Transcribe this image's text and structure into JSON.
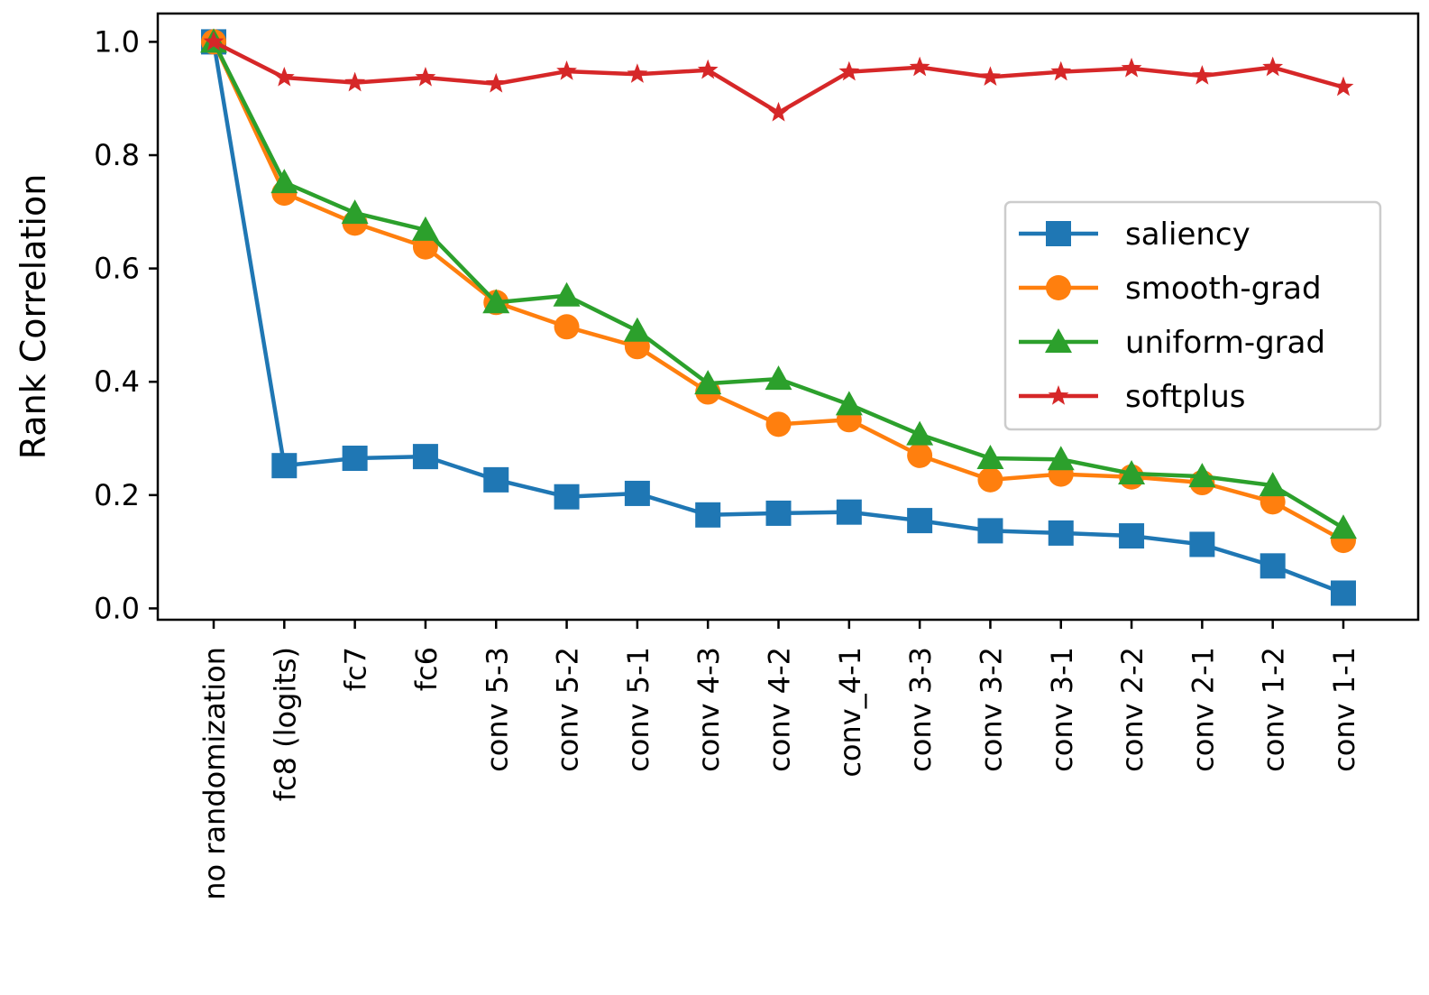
{
  "chart_data": {
    "type": "line",
    "title": "",
    "xlabel": "",
    "ylabel": "Rank Correlation",
    "ylim": [
      -0.02,
      1.05
    ],
    "yticks": [
      0.0,
      0.2,
      0.4,
      0.6,
      0.8,
      1.0
    ],
    "ytick_labels": [
      "0.0",
      "0.2",
      "0.4",
      "0.6",
      "0.8",
      "1.0"
    ],
    "grid": false,
    "legend_position": "center-right",
    "categories": [
      "no randomization",
      "fc8 (logits)",
      "fc7",
      "fc6",
      "conv 5-3",
      "conv 5-2",
      "conv 5-1",
      "conv 4-3",
      "conv 4-2",
      "conv_4-1",
      "conv 3-3",
      "conv 3-2",
      "conv 3-1",
      "conv 2-2",
      "conv 2-1",
      "conv 1-2",
      "conv 1-1"
    ],
    "series": [
      {
        "name": "saliency",
        "color": "#1f77b4",
        "marker": "square",
        "values": [
          1.0,
          0.252,
          0.265,
          0.268,
          0.227,
          0.197,
          0.203,
          0.165,
          0.168,
          0.17,
          0.155,
          0.137,
          0.133,
          0.128,
          0.113,
          0.075,
          0.027
        ]
      },
      {
        "name": "smooth-grad",
        "color": "#ff7f0e",
        "marker": "circle",
        "values": [
          1.0,
          0.733,
          0.68,
          0.638,
          0.54,
          0.497,
          0.462,
          0.382,
          0.325,
          0.333,
          0.27,
          0.227,
          0.237,
          0.232,
          0.222,
          0.188,
          0.12
        ]
      },
      {
        "name": "uniform-grad",
        "color": "#2ca02c",
        "marker": "triangle",
        "values": [
          1.0,
          0.752,
          0.698,
          0.668,
          0.54,
          0.552,
          0.49,
          0.397,
          0.405,
          0.36,
          0.307,
          0.265,
          0.263,
          0.238,
          0.233,
          0.217,
          0.142
        ]
      },
      {
        "name": "softplus",
        "color": "#d62728",
        "marker": "star",
        "values": [
          1.0,
          0.937,
          0.928,
          0.937,
          0.926,
          0.948,
          0.943,
          0.95,
          0.875,
          0.947,
          0.955,
          0.938,
          0.947,
          0.953,
          0.94,
          0.955,
          0.92
        ]
      }
    ]
  }
}
